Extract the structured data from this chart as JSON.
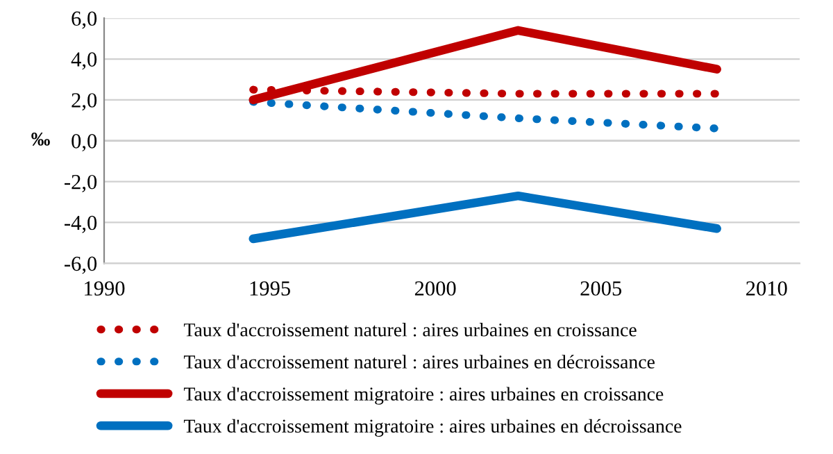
{
  "chart_data": {
    "type": "line",
    "ylabel": "‰",
    "x": [
      1994.5,
      2002.5,
      2008.5
    ],
    "series": [
      {
        "name": "Taux d'accroissement naturel : aires urbaines en croissance",
        "color": "#c00000",
        "line_style": "dotted",
        "values": [
          2.5,
          2.3,
          2.3
        ]
      },
      {
        "name": "Taux d'accroissement naturel : aires urbaines en décroissance",
        "color": "#0070c0",
        "line_style": "dotted",
        "values": [
          1.9,
          1.1,
          0.6
        ]
      },
      {
        "name": "Taux d'accroissement migratoire : aires urbaines en croissance",
        "color": "#c00000",
        "line_style": "solid",
        "values": [
          2.0,
          5.4,
          3.5
        ]
      },
      {
        "name": "Taux d'accroissement migratoire : aires urbaines en décroissance",
        "color": "#0070c0",
        "line_style": "solid",
        "values": [
          -4.8,
          -2.7,
          -4.3
        ]
      }
    ],
    "xlim": [
      1990,
      2011
    ],
    "xticks": [
      1990,
      1995,
      2000,
      2005,
      2010
    ],
    "ylim": [
      -6,
      6
    ],
    "yticks": [
      {
        "value": -6,
        "label": "-6,0"
      },
      {
        "value": -4,
        "label": "-4,0"
      },
      {
        "value": -2,
        "label": "-2,0"
      },
      {
        "value": 0,
        "label": "0,0"
      },
      {
        "value": 2,
        "label": "2,0"
      },
      {
        "value": 4,
        "label": "4,0"
      },
      {
        "value": 6,
        "label": "6,0"
      }
    ],
    "grid": "y",
    "legend": "bottom",
    "marker": "none"
  }
}
